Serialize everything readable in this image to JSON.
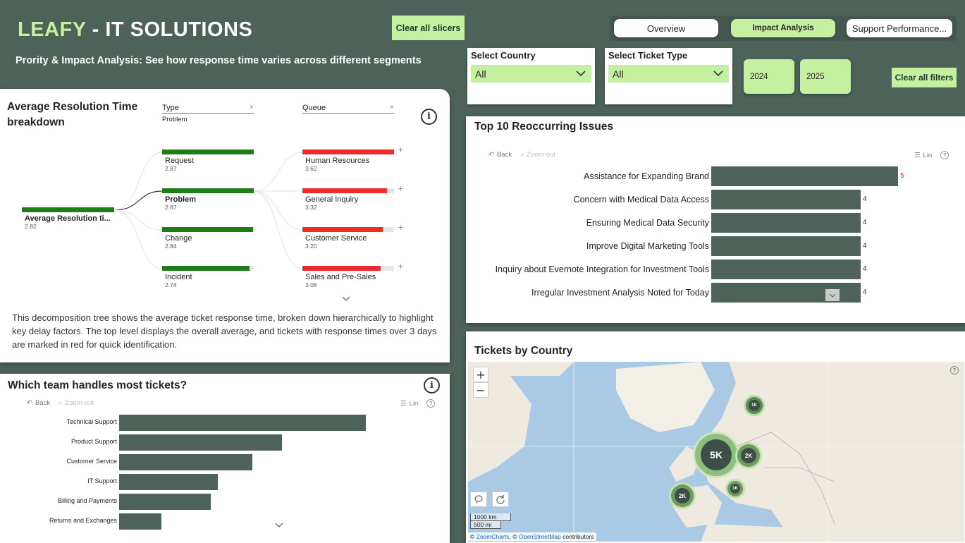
{
  "header": {
    "brand_green": "LEAFY",
    "brand_rest": " - IT SOLUTIONS",
    "subtitle": "Prority & Impact Analysis: See how response time varies across different segments",
    "clear_slicers": "Clear all slicers",
    "clear_filters": "Clear all filters"
  },
  "nav": {
    "overview": "Overview",
    "impact": "Impact Analysis",
    "support": "Support Performance..."
  },
  "slicers": {
    "country_title": "Select Country",
    "country_value": "All",
    "ticket_title": "Select Ticket Type",
    "ticket_value": "All",
    "years": [
      "2024",
      "2025"
    ]
  },
  "decomp": {
    "title": "Average Resolution Time breakdown",
    "col_type": "Type",
    "col_type_sub": "Problem",
    "col_queue": "Queue",
    "root_label": "Average Resolution ti...",
    "root_value": "2.82",
    "types": [
      {
        "label": "Request",
        "value": "2.87",
        "fill": 1.0
      },
      {
        "label": "Problem",
        "value": "2.87",
        "fill": 1.0
      },
      {
        "label": "Change",
        "value": "2.84",
        "fill": 0.99
      },
      {
        "label": "Incident",
        "value": "2.74",
        "fill": 0.95
      }
    ],
    "queues": [
      {
        "label": "Human Resources",
        "value": "3.62",
        "fill": 1.0
      },
      {
        "label": "General Inquiry",
        "value": "3.32",
        "fill": 0.92
      },
      {
        "label": "Customer Service",
        "value": "3.20",
        "fill": 0.88
      },
      {
        "label": "Sales and Pre-Sales",
        "value": "3.06",
        "fill": 0.85
      }
    ],
    "plus": "+",
    "description": "This decomposition tree shows the average ticket response time, broken down hierarchically to highlight key delay factors. The top level displays the overall average, and tickets with response times over 3 days are marked in red for quick identification."
  },
  "toolbar": {
    "back": "Back",
    "zoom_out": "Zoom-out",
    "lin": "Lin"
  },
  "issues": {
    "title": "Top 10 Reoccurring Issues",
    "chart_data": {
      "type": "bar",
      "categories": [
        "Assistance for Expanding Brand",
        "Concern with Medical Data Access",
        "Ensuring Medical Data Security",
        "Improve Digital Marketing Tools",
        "Inquiry about Evernote Integration for Investment Tools",
        "Irregular Investment Analysis Noted for Today"
      ],
      "values": [
        5,
        4,
        4,
        4,
        4,
        4
      ],
      "xlim": [
        0,
        5
      ]
    }
  },
  "teams": {
    "title": "Which team handles most tickets?",
    "chart_data": {
      "type": "bar",
      "categories": [
        "Technical Support",
        "Product Support",
        "Customer Service",
        "IT Support",
        "Billing and Payments",
        "Returns and Exchanges"
      ],
      "values": [
        100,
        66,
        54,
        40,
        37,
        17
      ]
    }
  },
  "map": {
    "title": "Tickets by Country",
    "zoom_in": "+",
    "zoom_out": "−",
    "scale_km": "1000 km",
    "scale_mi": "500 mi",
    "attribution_1": "© ",
    "attribution_link1": "ZoomCharts",
    "attribution_2": ", © ",
    "attribution_link2": "OpenStreetMap",
    "attribution_3": " contributors",
    "clusters": [
      {
        "label": "1K"
      },
      {
        "label": "5K"
      },
      {
        "label": "2K"
      },
      {
        "label": "1K"
      },
      {
        "label": "2K"
      }
    ]
  },
  "colors": {
    "accent": "#c5f0a0",
    "dark": "#4d6259",
    "green_bar": "#1e7d16",
    "red_bar": "#ee2b2b"
  }
}
